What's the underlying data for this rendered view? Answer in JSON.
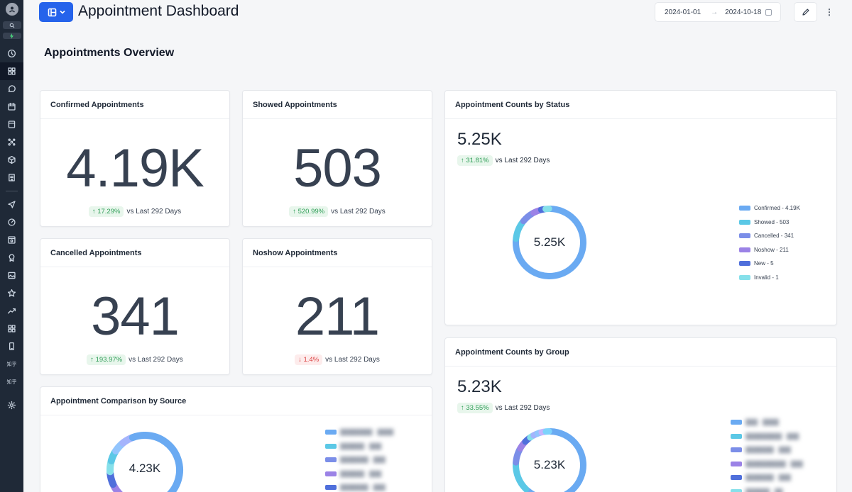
{
  "header": {
    "title": "Appointment Dashboard",
    "date_start": "2024-01-01",
    "date_end": "2024-10-18",
    "date_arrow": "→",
    "more": "⋮"
  },
  "section": {
    "title": "Appointments Overview"
  },
  "sidebar": {
    "labels": [
      "知乎",
      "知乎"
    ]
  },
  "cards": {
    "confirmed": {
      "title": "Confirmed Appointments",
      "value": "4.19K",
      "change": "↑ 17.29%",
      "trend": "up",
      "comparison": "vs Last 292 Days"
    },
    "showed": {
      "title": "Showed Appointments",
      "value": "503",
      "change": "↑ 520.99%",
      "trend": "up",
      "comparison": "vs Last 292 Days"
    },
    "cancelled": {
      "title": "Cancelled Appointments",
      "value": "341",
      "change": "↑ 193.97%",
      "trend": "up",
      "comparison": "vs Last 292 Days"
    },
    "noshow": {
      "title": "Noshow Appointments",
      "value": "211",
      "change": "↓ 1.4%",
      "trend": "down",
      "comparison": "vs Last 292 Days"
    }
  },
  "status_chart": {
    "title": "Appointment Counts by Status",
    "total": "5.25K",
    "change": "↑ 31.81%",
    "comparison": "vs Last 292 Days",
    "center_label": "5.25K",
    "legend": [
      "Confirmed - 4.19K",
      "Showed - 503",
      "Cancelled - 341",
      "Noshow - 211",
      "New - 5",
      "Invalid - 1"
    ]
  },
  "group_chart": {
    "title": "Appointment Counts by Group",
    "total": "5.23K",
    "change": "↑ 33.55%",
    "comparison": "vs Last 292 Days",
    "center_label": "5.23K"
  },
  "source_chart": {
    "title": "Appointment Comparison by Source",
    "center_label": "4.23K"
  },
  "colors": {
    "accent": "#2563eb",
    "sidebar": "#1f2937",
    "series": [
      "#6aaaf2",
      "#5bc8e6",
      "#7b8ee8",
      "#9b82e6",
      "#4f6fdb",
      "#86e0ea"
    ],
    "up": "#2f9e57",
    "down": "#dc4444"
  },
  "chart_data": [
    {
      "type": "pie",
      "title": "Appointment Counts by Status",
      "categories": [
        "Confirmed",
        "Showed",
        "Cancelled",
        "Noshow",
        "New",
        "Invalid"
      ],
      "values": [
        4190,
        503,
        341,
        211,
        5,
        1
      ]
    }
  ]
}
